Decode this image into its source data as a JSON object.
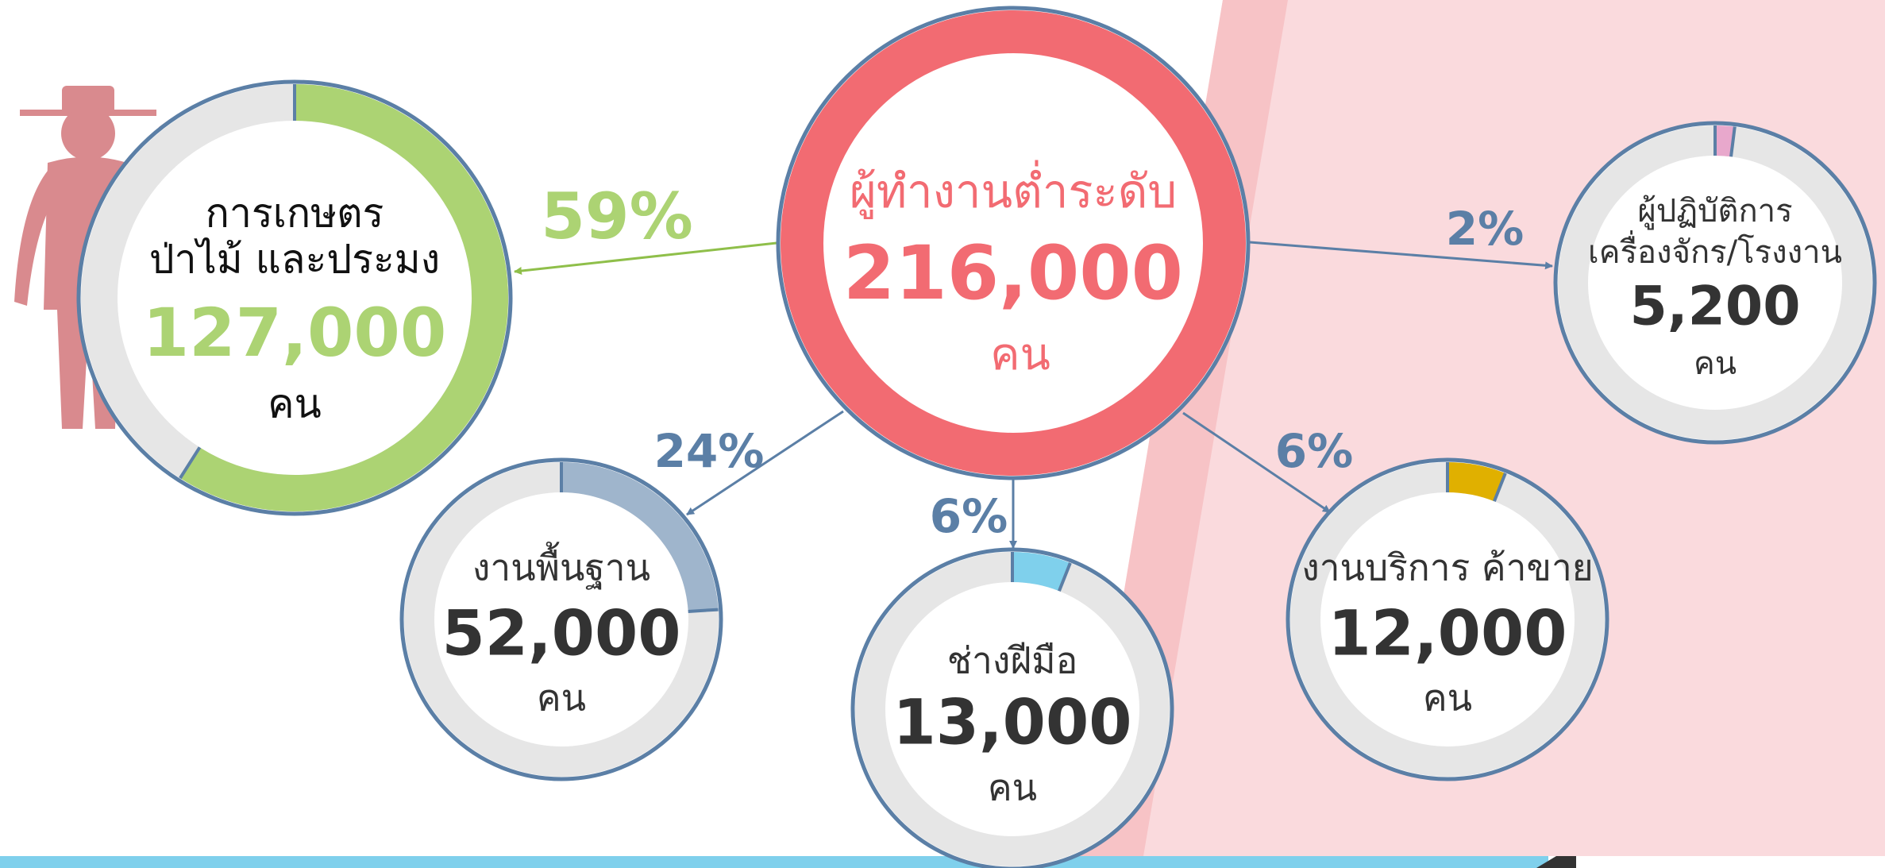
{
  "center": {
    "title": "ผู้ทำงานต่ำระดับ",
    "value": "216,000",
    "unit": "คน"
  },
  "branches": [
    {
      "label": [
        "การเกษตร",
        "ป่าไม้ และประมง"
      ],
      "value": "127,000",
      "unit": "คน",
      "percent": {
        "value": 59,
        "label": "59%"
      },
      "color": "#acd373"
    },
    {
      "label": [
        "งานพื้นฐาน"
      ],
      "value": "52,000",
      "unit": "คน",
      "percent": {
        "value": 24,
        "label": "24%"
      },
      "color": "#9fb5cc"
    },
    {
      "label": [
        "ช่างฝีมือ"
      ],
      "value": "13,000",
      "unit": "คน",
      "percent": {
        "value": 6,
        "label": "6%"
      },
      "color": "#7fd0ec"
    },
    {
      "label": [
        "งานบริการ ค้าขาย"
      ],
      "value": "12,000",
      "unit": "คน",
      "percent": {
        "value": 6,
        "label": "6%"
      },
      "color": "#e0b000"
    },
    {
      "label": [
        "ผู้ปฏิบัติการ",
        "เครื่องจักร/โรงงาน"
      ],
      "value": "5,200",
      "unit": "คน",
      "percent": {
        "value": 2,
        "label": "2%"
      },
      "color": "#e8a8cc"
    }
  ]
}
